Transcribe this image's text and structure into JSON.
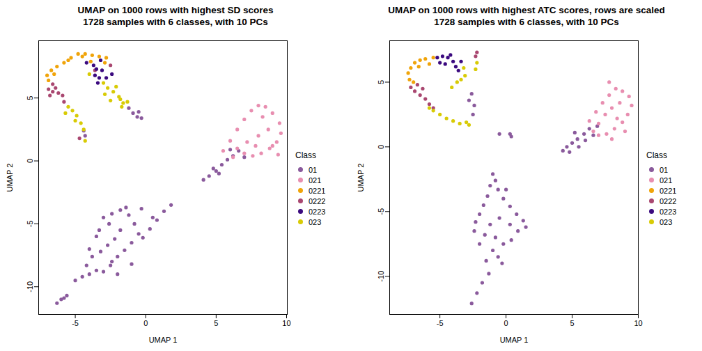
{
  "chart_data": [
    {
      "type": "scatter",
      "title": "UMAP on 1000 rows with highest SD scores",
      "subtitle": "1728 samples with 6 classes, with 10 PCs",
      "x_label": "UMAP 1",
      "y_label": "UMAP 2",
      "xlim": [
        -7.6,
        10.05
      ],
      "ylim": [
        -12.2,
        9.55
      ],
      "xticks": [
        -5,
        0,
        5,
        10
      ],
      "yticks": [
        -10,
        -5,
        0,
        5
      ],
      "legend_title": "Class",
      "legend": "right",
      "series": [
        {
          "name": "01",
          "color": "#8A5A9C",
          "points": [
            [
              -5,
              -9.5
            ],
            [
              -4.5,
              -9.2
            ],
            [
              -4,
              -9
            ],
            [
              -3.5,
              -8.7
            ],
            [
              -3,
              -8.8
            ],
            [
              -2.5,
              -8.3
            ],
            [
              -4.2,
              -8.3
            ],
            [
              -3.8,
              -7.6
            ],
            [
              -3.2,
              -7.2
            ],
            [
              -2.7,
              -6.7
            ],
            [
              -2.2,
              -6.2
            ],
            [
              -1.8,
              -5.5
            ],
            [
              -2.6,
              -5
            ],
            [
              -3,
              -4.5
            ],
            [
              -2.4,
              -4.2
            ],
            [
              -1.8,
              -3.9
            ],
            [
              -1.2,
              -4.3
            ],
            [
              -0.8,
              -5
            ],
            [
              -0.5,
              -5.8
            ],
            [
              -1,
              -6.5
            ],
            [
              -1.5,
              -7.1
            ],
            [
              -2,
              -7.6
            ],
            [
              -2.4,
              -8
            ],
            [
              -0.2,
              -6.1
            ],
            [
              0.3,
              -5.4
            ],
            [
              0.8,
              -4.7
            ],
            [
              1.3,
              -4
            ],
            [
              1.8,
              -3.5
            ],
            [
              0.5,
              -4.5
            ],
            [
              -0.3,
              -3.8
            ],
            [
              -1.4,
              -3.7
            ],
            [
              -3.5,
              -6
            ],
            [
              -4,
              -7
            ],
            [
              -2,
              -9
            ],
            [
              -1,
              -8.2
            ],
            [
              -3.3,
              -5.5
            ],
            [
              -6.3,
              -11.3
            ],
            [
              -6,
              -11
            ],
            [
              -5.6,
              -10.7
            ],
            [
              -5.8,
              -10.9
            ],
            [
              4.1,
              -1.5
            ],
            [
              4.5,
              -1.2
            ],
            [
              5,
              -0.8
            ],
            [
              5.4,
              -0.3
            ],
            [
              5.8,
              0.1
            ],
            [
              6.2,
              0.4
            ],
            [
              6.6,
              0.8
            ],
            [
              5.2,
              -1
            ],
            [
              4.8,
              -0.6
            ],
            [
              6,
              0.9
            ],
            [
              7,
              0.3
            ],
            [
              -1.2,
              4.2
            ],
            [
              -0.9,
              3.8
            ],
            [
              -0.6,
              3.5
            ],
            [
              -0.3,
              3.4
            ],
            [
              -0.5,
              3.9
            ],
            [
              -4.3,
              2
            ],
            [
              -4.4,
              2.4
            ]
          ]
        },
        {
          "name": "021",
          "color": "#E88EB0",
          "points": [
            [
              5.5,
              0.8
            ],
            [
              6,
              1.6
            ],
            [
              6.5,
              2.5
            ],
            [
              7,
              3.3
            ],
            [
              7.5,
              4
            ],
            [
              8,
              4.4
            ],
            [
              8.5,
              4.3
            ],
            [
              9,
              3.8
            ],
            [
              9.5,
              3
            ],
            [
              9.6,
              2.2
            ],
            [
              9.3,
              1.5
            ],
            [
              8.8,
              1
            ],
            [
              8.2,
              0.6
            ],
            [
              7.6,
              0.4
            ],
            [
              7,
              0.6
            ],
            [
              6.5,
              1
            ],
            [
              8,
              2
            ],
            [
              8.7,
              2.5
            ],
            [
              7.2,
              1.5
            ],
            [
              9,
              1.2
            ],
            [
              6.2,
              0.3
            ],
            [
              8.3,
              3.5
            ],
            [
              7.8,
              1.2
            ],
            [
              9.4,
              0.5
            ]
          ]
        },
        {
          "name": "0221",
          "color": "#F0A40A",
          "points": [
            [
              -7,
              6.8
            ],
            [
              -6.7,
              7.2
            ],
            [
              -6.3,
              7.5
            ],
            [
              -5.8,
              7.8
            ],
            [
              -5.3,
              8.2
            ],
            [
              -4.8,
              8.5
            ],
            [
              -4.3,
              8.5
            ],
            [
              -3.8,
              8.4
            ],
            [
              -3.3,
              8.3
            ],
            [
              -2.9,
              7.8
            ],
            [
              -6.9,
              6.4
            ],
            [
              -6.5,
              6.9
            ],
            [
              -5.5,
              8
            ],
            [
              -4.5,
              8.3
            ],
            [
              -3.9,
              7.9
            ],
            [
              -2.8,
              8.2
            ]
          ]
        },
        {
          "name": "0222",
          "color": "#A94770",
          "points": [
            [
              -6.9,
              5.7
            ],
            [
              -6.6,
              5.5
            ],
            [
              -6.2,
              5.4
            ],
            [
              -5.9,
              5.2
            ],
            [
              -6.4,
              5.8
            ],
            [
              -5.8,
              4.7
            ],
            [
              -6.6,
              6.1
            ],
            [
              -3.6,
              7.2
            ],
            [
              -2.5,
              7.6
            ],
            [
              -4.7,
              1.8
            ],
            [
              -6.8,
              5.2
            ]
          ]
        },
        {
          "name": "0223",
          "color": "#3B0A7F",
          "points": [
            [
              -3.6,
              6.8
            ],
            [
              -3.3,
              6.6
            ],
            [
              -3.5,
              7.3
            ],
            [
              -3.1,
              7.2
            ],
            [
              -2.8,
              6.6
            ],
            [
              -3.4,
              6.2
            ],
            [
              -2.4,
              6.9
            ],
            [
              -3.7,
              7.6
            ],
            [
              -4.2,
              7.8
            ],
            [
              -3.2,
              8
            ]
          ]
        },
        {
          "name": "023",
          "color": "#D8CB05",
          "points": [
            [
              -5.5,
              4.3
            ],
            [
              -5.2,
              4
            ],
            [
              -4.9,
              3.6
            ],
            [
              -4.6,
              3
            ],
            [
              -4.4,
              2.5
            ],
            [
              -4.3,
              1.6
            ],
            [
              -5.7,
              3.8
            ],
            [
              -3,
              6.2
            ],
            [
              -2.7,
              5.8
            ],
            [
              -2.3,
              5.5
            ],
            [
              -1.9,
              5.1
            ],
            [
              -1.6,
              4.6
            ],
            [
              -2.5,
              4.8
            ],
            [
              -2.9,
              5.3
            ],
            [
              -2.1,
              5.9
            ],
            [
              -1.7,
              4.3
            ],
            [
              -1.3,
              4.7
            ],
            [
              -4,
              6.9
            ],
            [
              -1.8,
              4.9
            ],
            [
              -5,
              3.2
            ]
          ]
        }
      ]
    },
    {
      "type": "scatter",
      "title": "UMAP on 1000 rows with highest ATC scores, rows are scaled",
      "subtitle": "1728 samples with 6 classes, with 10 PCs",
      "x_label": "UMAP 1",
      "y_label": "UMAP 2",
      "xlim": [
        -8.8,
        10.0
      ],
      "ylim": [
        -12.95,
        8.2
      ],
      "xticks": [
        -5,
        0,
        5,
        10
      ],
      "yticks": [
        -10,
        -5,
        0,
        5
      ],
      "legend_title": "Class",
      "legend": "right",
      "series": [
        {
          "name": "01",
          "color": "#8A5A9C",
          "points": [
            [
              -1,
              -2.1
            ],
            [
              -0.8,
              -2.6
            ],
            [
              -1.2,
              -3
            ],
            [
              -0.6,
              -3.3
            ],
            [
              -1.4,
              -3.8
            ],
            [
              -0.2,
              -4
            ],
            [
              -1.7,
              -4.5
            ],
            [
              0.3,
              -4.6
            ],
            [
              -2,
              -5.2
            ],
            [
              0.8,
              -5.2
            ],
            [
              1.3,
              -5.7
            ],
            [
              1.5,
              -6.2
            ],
            [
              0.9,
              -6.5
            ],
            [
              0.3,
              -6
            ],
            [
              -0.5,
              -5.5
            ],
            [
              -1.2,
              -6
            ],
            [
              -2.3,
              -5.8
            ],
            [
              -1.6,
              -6.8
            ],
            [
              -0.8,
              -7
            ],
            [
              -0.2,
              -7.5
            ],
            [
              0.4,
              -7.2
            ],
            [
              -1,
              -8
            ],
            [
              -1.5,
              -8.8
            ],
            [
              -0.6,
              -8.5
            ],
            [
              -1.3,
              -9.8
            ],
            [
              -1.8,
              -10.5
            ],
            [
              -2.2,
              -11.3
            ],
            [
              -2.6,
              -12.1
            ],
            [
              -2,
              -7.5
            ],
            [
              -2.4,
              -6.5
            ],
            [
              0,
              -3.3
            ],
            [
              -0.3,
              -9
            ],
            [
              4.3,
              -0.3
            ],
            [
              4.6,
              0
            ],
            [
              5,
              0.3
            ],
            [
              5.4,
              0.6
            ],
            [
              5.9,
              1
            ],
            [
              6.3,
              1.4
            ],
            [
              4.8,
              -0.4
            ],
            [
              5.5,
              0
            ],
            [
              6,
              0.5
            ],
            [
              6.6,
              0.9
            ],
            [
              6.9,
              1.6
            ],
            [
              5.2,
              1.1
            ],
            [
              -2.6,
              4.1
            ],
            [
              -2.4,
              3.2
            ],
            [
              -2.5,
              2.5
            ],
            [
              -2.8,
              3.6
            ],
            [
              0.3,
              1
            ],
            [
              0.4,
              0.8
            ],
            [
              -0.5,
              1
            ]
          ]
        },
        {
          "name": "021",
          "color": "#E88EB0",
          "points": [
            [
              6.3,
              2
            ],
            [
              6.8,
              2.7
            ],
            [
              7.3,
              3.4
            ],
            [
              7.8,
              4
            ],
            [
              8.3,
              4.5
            ],
            [
              8.8,
              4.3
            ],
            [
              9.3,
              3.9
            ],
            [
              9.5,
              3.2
            ],
            [
              9.2,
              2.5
            ],
            [
              8.8,
              1.9
            ],
            [
              8.2,
              1.4
            ],
            [
              7.6,
              1
            ],
            [
              7,
              0.9
            ],
            [
              7.5,
              2.5
            ],
            [
              8,
              3
            ],
            [
              8.6,
              3.4
            ],
            [
              7,
              1.8
            ],
            [
              9,
              1.2
            ],
            [
              8,
              0.6
            ],
            [
              6.6,
              1.2
            ],
            [
              8.4,
              2.2
            ],
            [
              7.8,
              5
            ]
          ]
        },
        {
          "name": "0221",
          "color": "#F0A40A",
          "points": [
            [
              -7.4,
              5.7
            ],
            [
              -7.2,
              6.1
            ],
            [
              -6.9,
              6.5
            ],
            [
              -6.5,
              6.7
            ],
            [
              -6.1,
              6.8
            ],
            [
              -7.3,
              5.2
            ],
            [
              -5.8,
              6.4
            ],
            [
              -5.5,
              6.9
            ],
            [
              -6.6,
              6.2
            ],
            [
              -7,
              5
            ]
          ]
        },
        {
          "name": "0222",
          "color": "#A94770",
          "points": [
            [
              -7.2,
              4.6
            ],
            [
              -6.9,
              4.3
            ],
            [
              -6.5,
              4
            ],
            [
              -6.1,
              3.7
            ],
            [
              -5.8,
              3.3
            ],
            [
              -6.7,
              4.8
            ],
            [
              -5.5,
              3
            ],
            [
              -2.2,
              7.3
            ],
            [
              -2.3,
              7
            ],
            [
              -6.3,
              4.5
            ]
          ]
        },
        {
          "name": "0223",
          "color": "#3B0A7F",
          "points": [
            [
              -5.2,
              6.9
            ],
            [
              -4.8,
              7
            ],
            [
              -4.4,
              6.9
            ],
            [
              -4,
              6.6
            ],
            [
              -3.8,
              6.2
            ],
            [
              -4.6,
              6.4
            ],
            [
              -5,
              6.5
            ],
            [
              -3.6,
              5.9
            ],
            [
              -4.2,
              7.1
            ],
            [
              -3.4,
              6.6
            ]
          ]
        },
        {
          "name": "023",
          "color": "#D8CB05",
          "points": [
            [
              -5.5,
              2.8
            ],
            [
              -5,
              2.5
            ],
            [
              -4.5,
              2.2
            ],
            [
              -4,
              2
            ],
            [
              -3.5,
              1.8
            ],
            [
              -3,
              1.9
            ],
            [
              -3.4,
              5.2
            ],
            [
              -3.1,
              5.5
            ],
            [
              -3.7,
              5
            ],
            [
              -2.2,
              6.5
            ],
            [
              -2.3,
              6
            ],
            [
              -4.1,
              4.6
            ],
            [
              -5.8,
              3
            ],
            [
              -2.8,
              1.7
            ],
            [
              -3.2,
              6.1
            ]
          ]
        }
      ]
    }
  ]
}
